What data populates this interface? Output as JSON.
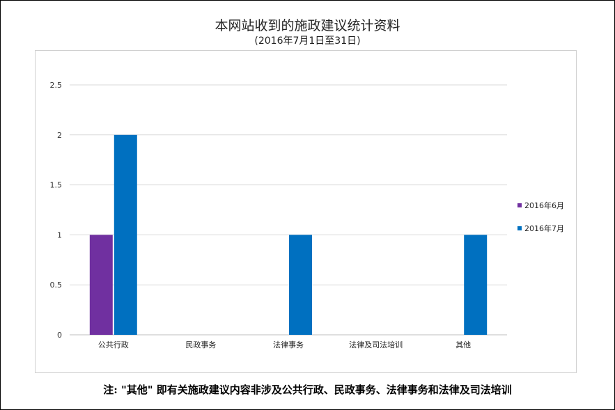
{
  "title": "本网站收到的施政建议统计资料",
  "subtitle": "(2016年7月1日至31日)",
  "note": "注: \"其他\" 即有关施政建议内容非涉及公共行政、民政事务、法律事务和法律及司法培训",
  "chart_data": {
    "type": "bar",
    "categories": [
      "公共行政",
      "民政事务",
      "法律事务",
      "法律及司法培训",
      "其他"
    ],
    "series": [
      {
        "name": "2016年6月",
        "values": [
          1,
          0,
          0,
          0,
          0
        ],
        "color": "#7030a0"
      },
      {
        "name": "2016年7月",
        "values": [
          2,
          0,
          1,
          0,
          1
        ],
        "color": "#0070c0"
      }
    ],
    "yticks": [
      "0",
      "0.5",
      "1",
      "1.5",
      "2",
      "2.5"
    ],
    "ylim": [
      0,
      2.5
    ],
    "grid": true,
    "legend": "right"
  }
}
